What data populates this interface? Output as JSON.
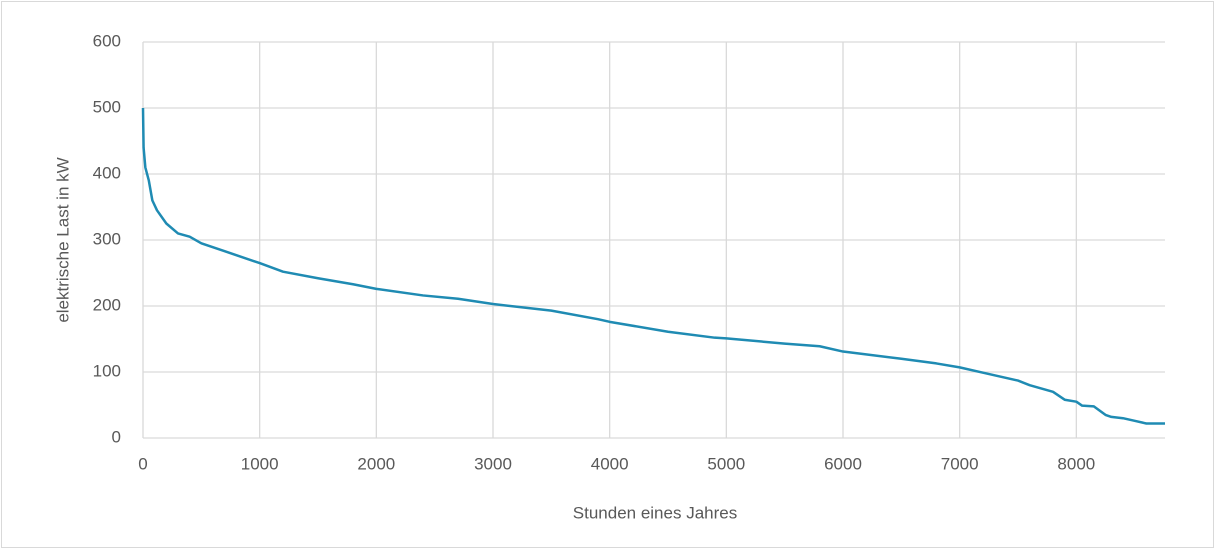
{
  "chart_data": {
    "type": "line",
    "xlabel": "Stunden eines Jahres",
    "ylabel": "elektrische Last in kW",
    "color": "#1f8bb3",
    "x": [
      0,
      5,
      20,
      50,
      80,
      120,
      200,
      300,
      400,
      500,
      700,
      1000,
      1200,
      1500,
      1800,
      2000,
      2400,
      2700,
      3000,
      3500,
      3900,
      4000,
      4500,
      4900,
      5000,
      5500,
      5800,
      6000,
      6500,
      6800,
      7000,
      7200,
      7500,
      7600,
      7800,
      7900,
      8000,
      8050,
      8150,
      8250,
      8300,
      8400,
      8500,
      8600,
      8760
    ],
    "values": [
      500,
      440,
      410,
      390,
      360,
      345,
      325,
      310,
      305,
      295,
      283,
      265,
      252,
      242,
      233,
      226,
      216,
      211,
      203,
      193,
      180,
      176,
      161,
      152,
      151,
      143,
      139,
      131,
      120,
      113,
      107,
      99,
      87,
      80,
      70,
      58,
      55,
      49,
      48,
      35,
      32,
      30,
      26,
      22,
      22
    ],
    "xlim": [
      0,
      8760
    ],
    "xticks": [
      0,
      1000,
      2000,
      3000,
      4000,
      5000,
      6000,
      7000,
      8000
    ],
    "ylim": [
      0,
      600
    ],
    "yticks": [
      0,
      100,
      200,
      300,
      400,
      500,
      600
    ],
    "grid": true
  }
}
